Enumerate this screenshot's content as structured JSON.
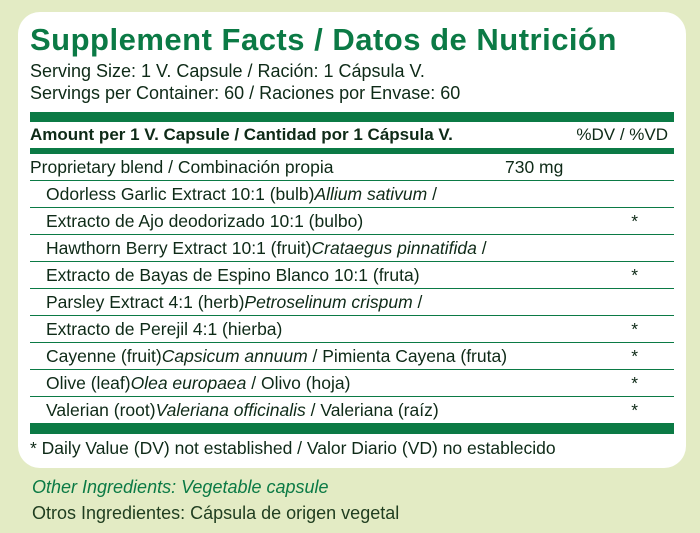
{
  "title": "Supplement Facts / Datos de Nutrición",
  "serving_size": "Serving Size: 1 V. Capsule / Ración: 1 Cápsula V.",
  "servings_per_container": "Servings per Container: 60 / Raciones por Envase: 60",
  "header": {
    "amount_label": "Amount per 1 V. Capsule / Cantidad por 1 Cápsula V.",
    "dv_label": "%DV / %VD"
  },
  "blend": {
    "name": "Proprietary blend / Combinación propia",
    "amount": "730 mg"
  },
  "ingredients": [
    {
      "pre": "Odorless Garlic Extract 10:1 (bulb)",
      "latin": "Allium sativum",
      "post": " /",
      "dv": ""
    },
    {
      "pre": "Extracto de Ajo deodorizado 10:1 (bulbo)",
      "latin": "",
      "post": "",
      "dv": "*"
    },
    {
      "pre": "Hawthorn Berry Extract 10:1 (fruit)",
      "latin": "Crataegus pinnatifida",
      "post": " /",
      "dv": ""
    },
    {
      "pre": "Extracto de Bayas de Espino Blanco 10:1 (fruta)",
      "latin": "",
      "post": "",
      "dv": "*"
    },
    {
      "pre": "Parsley Extract 4:1 (herb)",
      "latin": "Petroselinum crispum",
      "post": " /",
      "dv": ""
    },
    {
      "pre": "Extracto de Perejil 4:1 (hierba)",
      "latin": "",
      "post": "",
      "dv": "*"
    },
    {
      "pre": "Cayenne (fruit)",
      "latin": "Capsicum annuum",
      "post": " / Pimienta Cayena (fruta)",
      "dv": "*"
    },
    {
      "pre": "Olive (leaf)",
      "latin": "Olea europaea",
      "post": " / Olivo (hoja)",
      "dv": "*"
    },
    {
      "pre": "Valerian (root)",
      "latin": "Valeriana officinalis",
      "post": " / Valeriana (raíz)",
      "dv": "*"
    }
  ],
  "footnote": "* Daily Value (DV) not established / Valor Diario (VD) no establecido",
  "other_ingredients_en": "Other Ingredients: Vegetable capsule",
  "other_ingredients_es": "Otros Ingredientes: Cápsula de origen vegetal",
  "colors": {
    "accent": "#0b7a45",
    "background": "#e3ebc4",
    "panel": "#ffffff",
    "text": "#0e2a17"
  }
}
